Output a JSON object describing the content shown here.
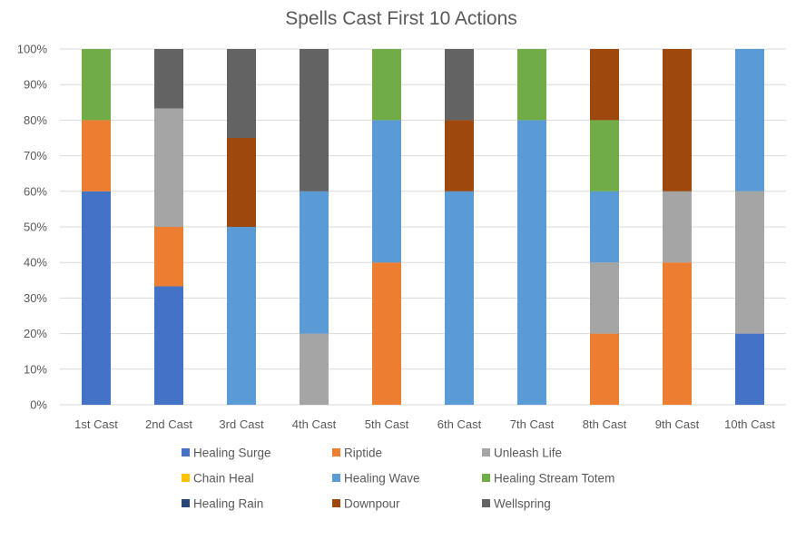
{
  "chart_data": {
    "type": "bar",
    "stacked": "percent",
    "title": "Spells Cast First 10 Actions",
    "xlabel": "",
    "ylabel": "",
    "ylim": [
      0,
      100
    ],
    "y_ticks": [
      "0%",
      "10%",
      "20%",
      "30%",
      "40%",
      "50%",
      "60%",
      "70%",
      "80%",
      "90%",
      "100%"
    ],
    "grid": true,
    "legend_position": "bottom",
    "categories": [
      "1st Cast",
      "2nd Cast",
      "3rd Cast",
      "4th Cast",
      "5th Cast",
      "6th Cast",
      "7th Cast",
      "8th Cast",
      "9th Cast",
      "10th Cast"
    ],
    "series": [
      {
        "name": "Healing Surge",
        "color": "#4472C4",
        "values": [
          60,
          33.3,
          0,
          0,
          0,
          0,
          0,
          0,
          0,
          20
        ]
      },
      {
        "name": "Riptide",
        "color": "#ED7D31",
        "values": [
          20,
          16.7,
          0,
          0,
          40,
          0,
          0,
          20,
          40,
          0
        ]
      },
      {
        "name": "Unleash Life",
        "color": "#A5A5A5",
        "values": [
          0,
          33.3,
          0,
          20,
          0,
          0,
          0,
          20,
          20,
          40
        ]
      },
      {
        "name": "Chain Heal",
        "color": "#FFC000",
        "values": [
          0,
          0,
          0,
          0,
          0,
          0,
          0,
          0,
          0,
          0
        ]
      },
      {
        "name": "Healing Wave",
        "color": "#5B9BD5",
        "values": [
          0,
          0,
          50,
          40,
          40,
          60,
          80,
          20,
          0,
          40
        ]
      },
      {
        "name": "Healing Stream Totem",
        "color": "#70AD47",
        "values": [
          20,
          0,
          0,
          0,
          20,
          0,
          20,
          20,
          0,
          0
        ]
      },
      {
        "name": "Healing Rain",
        "color": "#264478",
        "values": [
          0,
          0,
          0,
          0,
          0,
          0,
          0,
          0,
          0,
          0
        ]
      },
      {
        "name": "Downpour",
        "color": "#9E480E",
        "values": [
          0,
          0,
          25,
          0,
          0,
          20,
          0,
          20,
          40,
          0
        ]
      },
      {
        "name": "Wellspring",
        "color": "#636363",
        "values": [
          0,
          16.7,
          25,
          40,
          0,
          20,
          0,
          0,
          0,
          0
        ]
      }
    ]
  }
}
